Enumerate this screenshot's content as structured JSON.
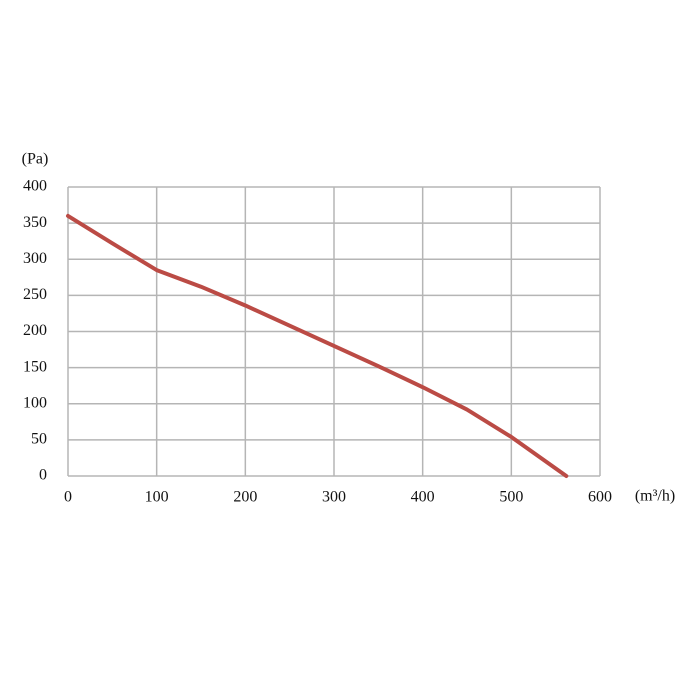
{
  "chart_data": {
    "type": "line",
    "x_label": "(m³/h)",
    "y_label": "(Pa)",
    "x": [
      0,
      50,
      100,
      150,
      200,
      250,
      300,
      350,
      400,
      450,
      500,
      562
    ],
    "series": [
      {
        "color": "#bb4b45",
        "values": [
          360,
          322,
          285,
          262,
          236,
          208,
          180,
          152,
          123,
          92,
          54,
          0
        ]
      }
    ],
    "xlim": [
      0,
      600
    ],
    "xticks": [
      0,
      100,
      200,
      300,
      400,
      500,
      600
    ],
    "ylim": [
      0,
      400
    ],
    "yticks": [
      0,
      50,
      100,
      150,
      200,
      250,
      300,
      350,
      400
    ],
    "grid": true
  }
}
